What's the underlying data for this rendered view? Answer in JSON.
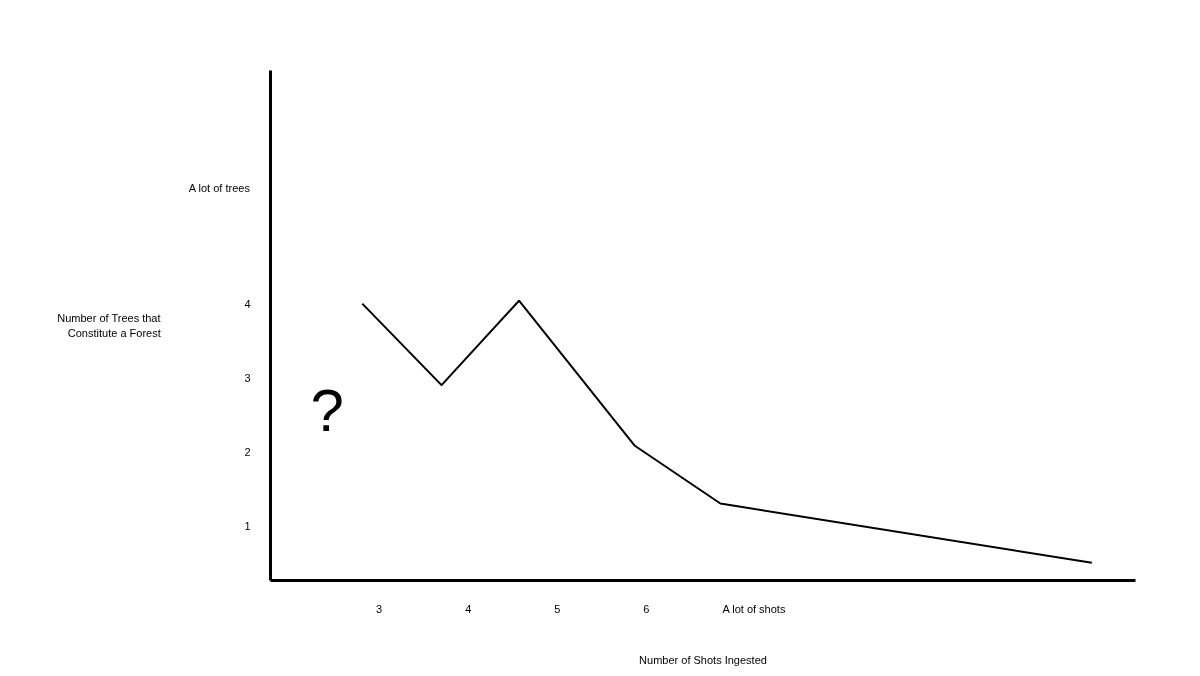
{
  "chart_data": {
    "type": "line",
    "xlabel": "Number of Shots Ingested",
    "ylabel": "Number of Trees that Constitute a Forest",
    "x": [
      2.81,
      3.7,
      4.57,
      5.87,
      6.83,
      11.0
    ],
    "series": [
      {
        "color": "#000000",
        "values": [
          4.01,
          2.91,
          4.05,
          2.09,
          1.31,
          0.51
        ]
      }
    ],
    "xlim": [
      1.78,
      11.49
    ],
    "ylim": [
      0.27,
      7.16
    ],
    "xticks": [
      3,
      4,
      5,
      6,
      {
        "value": 7.21,
        "label": "A lot of shots"
      }
    ],
    "yticks": [
      1,
      2,
      3,
      4,
      {
        "value": 5.57,
        "label": "A lot of trees"
      }
    ],
    "annotations": [
      "?"
    ],
    "grid": false,
    "marker": "none",
    "line_style": "solid"
  }
}
